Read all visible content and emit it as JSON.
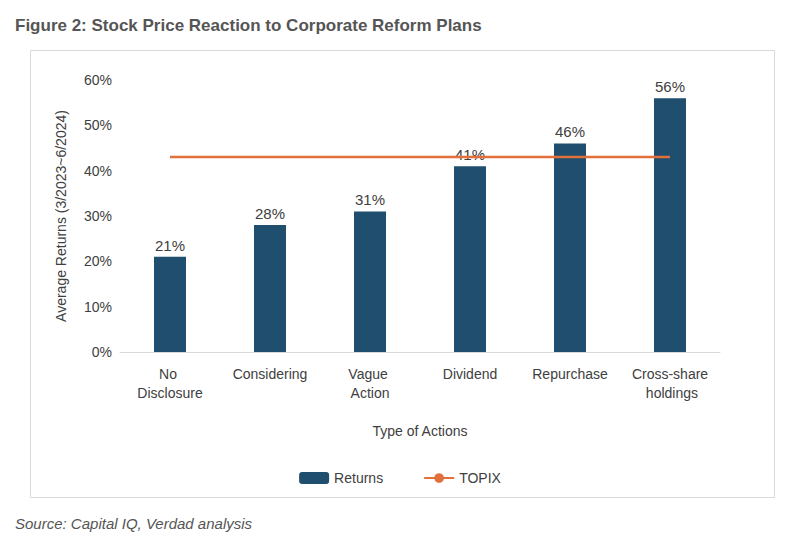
{
  "chart_data": {
    "type": "bar",
    "title": "Figure 2: Stock Price Reaction to Corporate Reform Plans",
    "source": "Source: Capital IQ, Verdad analysis",
    "x_label": "Type of Actions",
    "y_label": "Average Returns (3/2023~6/2024)",
    "categories": [
      "No Disclosure",
      "Considering",
      "Vague Action",
      "Dividend",
      "Repurchase",
      "Cross-share holdings"
    ],
    "series": [
      {
        "name": "Returns",
        "type": "bar",
        "color": "#1f4e6e",
        "values": [
          21,
          28,
          31,
          41,
          46,
          56
        ],
        "value_labels": [
          "21%",
          "28%",
          "31%",
          "41%",
          "46%",
          "56%"
        ]
      },
      {
        "name": "TOPIX",
        "type": "line",
        "color": "#e2703a",
        "values": [
          43,
          43,
          43,
          43,
          43,
          43
        ]
      }
    ],
    "ylim": [
      0,
      60
    ],
    "yticks": [
      {
        "value": 0,
        "label": "0%"
      },
      {
        "value": 10,
        "label": "10%"
      },
      {
        "value": 20,
        "label": "20%"
      },
      {
        "value": 30,
        "label": "30%"
      },
      {
        "value": 40,
        "label": "40%"
      },
      {
        "value": 50,
        "label": "50%"
      },
      {
        "value": 60,
        "label": "60%"
      }
    ],
    "grid": false,
    "legend": "bottom",
    "data_labels": true
  }
}
